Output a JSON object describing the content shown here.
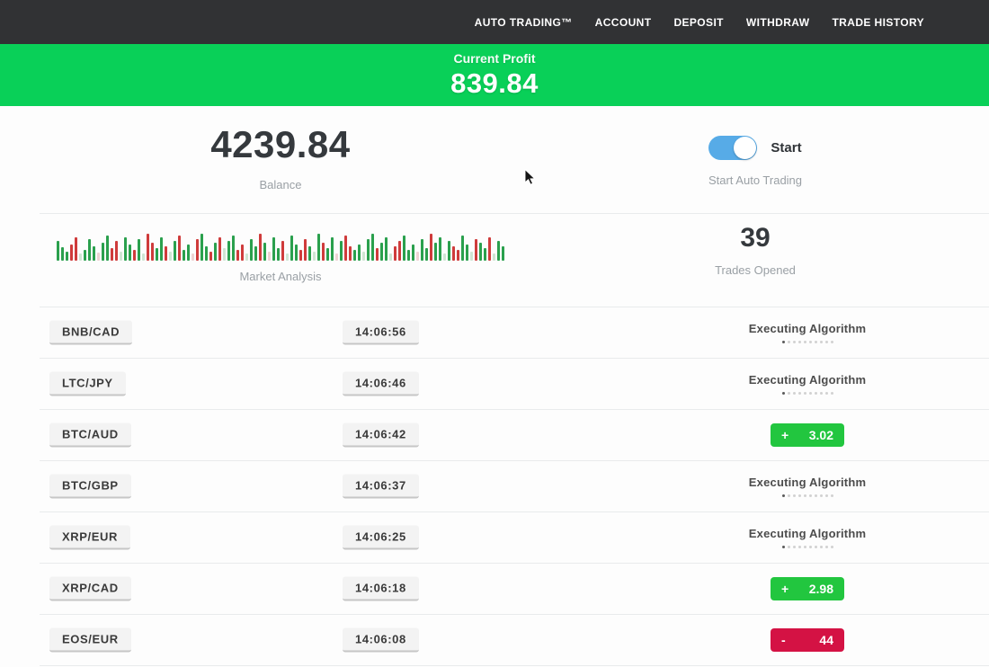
{
  "nav": {
    "items": [
      "AUTO TRADING™",
      "ACCOUNT",
      "DEPOSIT",
      "WITHDRAW",
      "TRADE HISTORY"
    ]
  },
  "banner": {
    "label": "Current Profit",
    "value": "839.84"
  },
  "account": {
    "balance": "4239.84",
    "balance_label": "Balance",
    "toggle_label": "Start",
    "toggle_caption": "Start Auto Trading",
    "toggle_on": true
  },
  "stats": {
    "market_label": "Market Analysis",
    "trades_opened": "39",
    "trades_opened_label": "Trades Opened"
  },
  "market_analysis": {
    "bars": [
      [
        22,
        "g"
      ],
      [
        15,
        "g"
      ],
      [
        10,
        "g"
      ],
      [
        18,
        "r"
      ],
      [
        26,
        "r"
      ],
      [
        8,
        "lg"
      ],
      [
        12,
        "g"
      ],
      [
        24,
        "g"
      ],
      [
        16,
        "g"
      ],
      [
        9,
        "lr"
      ],
      [
        20,
        "g"
      ],
      [
        28,
        "g"
      ],
      [
        14,
        "r"
      ],
      [
        22,
        "r"
      ],
      [
        10,
        "lg"
      ],
      [
        26,
        "g"
      ],
      [
        18,
        "g"
      ],
      [
        12,
        "r"
      ],
      [
        24,
        "g"
      ],
      [
        8,
        "lg"
      ],
      [
        30,
        "r"
      ],
      [
        20,
        "r"
      ],
      [
        14,
        "g"
      ],
      [
        26,
        "g"
      ],
      [
        16,
        "r"
      ],
      [
        10,
        "lg"
      ],
      [
        22,
        "g"
      ],
      [
        28,
        "r"
      ],
      [
        12,
        "g"
      ],
      [
        18,
        "g"
      ],
      [
        8,
        "lr"
      ],
      [
        24,
        "r"
      ],
      [
        30,
        "g"
      ],
      [
        16,
        "g"
      ],
      [
        10,
        "r"
      ],
      [
        20,
        "g"
      ],
      [
        26,
        "r"
      ],
      [
        14,
        "lg"
      ],
      [
        22,
        "g"
      ],
      [
        28,
        "g"
      ],
      [
        12,
        "r"
      ],
      [
        18,
        "r"
      ],
      [
        8,
        "lg"
      ],
      [
        24,
        "g"
      ],
      [
        16,
        "g"
      ],
      [
        30,
        "r"
      ],
      [
        20,
        "g"
      ],
      [
        10,
        "lr"
      ],
      [
        26,
        "g"
      ],
      [
        14,
        "g"
      ],
      [
        22,
        "r"
      ],
      [
        8,
        "lg"
      ],
      [
        28,
        "g"
      ],
      [
        18,
        "g"
      ],
      [
        12,
        "r"
      ],
      [
        24,
        "r"
      ],
      [
        16,
        "g"
      ],
      [
        10,
        "lg"
      ],
      [
        30,
        "g"
      ],
      [
        20,
        "r"
      ],
      [
        14,
        "g"
      ],
      [
        26,
        "g"
      ],
      [
        8,
        "lr"
      ],
      [
        22,
        "g"
      ],
      [
        28,
        "r"
      ],
      [
        16,
        "r"
      ],
      [
        12,
        "g"
      ],
      [
        18,
        "g"
      ],
      [
        10,
        "lg"
      ],
      [
        24,
        "g"
      ],
      [
        30,
        "g"
      ],
      [
        14,
        "r"
      ],
      [
        20,
        "g"
      ],
      [
        26,
        "g"
      ],
      [
        8,
        "lg"
      ],
      [
        16,
        "r"
      ],
      [
        22,
        "r"
      ],
      [
        28,
        "g"
      ],
      [
        12,
        "g"
      ],
      [
        18,
        "g"
      ],
      [
        10,
        "lr"
      ],
      [
        24,
        "g"
      ],
      [
        14,
        "g"
      ],
      [
        30,
        "r"
      ],
      [
        20,
        "g"
      ],
      [
        26,
        "g"
      ],
      [
        8,
        "lg"
      ],
      [
        22,
        "g"
      ],
      [
        16,
        "r"
      ],
      [
        12,
        "r"
      ],
      [
        28,
        "g"
      ],
      [
        18,
        "g"
      ],
      [
        10,
        "lg"
      ],
      [
        24,
        "r"
      ],
      [
        20,
        "g"
      ],
      [
        14,
        "g"
      ],
      [
        26,
        "r"
      ],
      [
        8,
        "lg"
      ],
      [
        22,
        "g"
      ],
      [
        16,
        "g"
      ]
    ]
  },
  "progress_dots": {
    "count": 10,
    "active_index": 0
  },
  "trades": [
    {
      "pair": "BNB/CAD",
      "time": "14:06:56",
      "status": "executing",
      "status_label": "Executing Algorithm"
    },
    {
      "pair": "LTC/JPY",
      "time": "14:06:46",
      "status": "executing",
      "status_label": "Executing Algorithm"
    },
    {
      "pair": "BTC/AUD",
      "time": "14:06:42",
      "status": "profit",
      "sign": "+",
      "amount": "3.02"
    },
    {
      "pair": "BTC/GBP",
      "time": "14:06:37",
      "status": "executing",
      "status_label": "Executing Algorithm"
    },
    {
      "pair": "XRP/EUR",
      "time": "14:06:25",
      "status": "executing",
      "status_label": "Executing Algorithm"
    },
    {
      "pair": "XRP/CAD",
      "time": "14:06:18",
      "status": "profit",
      "sign": "+",
      "amount": "2.98"
    },
    {
      "pair": "EOS/EUR",
      "time": "14:06:08",
      "status": "loss",
      "sign": "-",
      "amount": "44"
    }
  ],
  "colors": {
    "nav_bg": "#313234",
    "banner_green": "#09d058",
    "profit_green": "#22c63f",
    "loss_red": "#d41244",
    "toggle_blue": "#57abe7",
    "ink": "#35393d",
    "muted": "#9aa0a5",
    "exec_text": "#4c4c4c",
    "bar_green": "#2aa04d",
    "bar_red": "#cf3b3b",
    "bar_light_green": "#cfe5d3",
    "bar_light_red": "#edd3d3"
  }
}
